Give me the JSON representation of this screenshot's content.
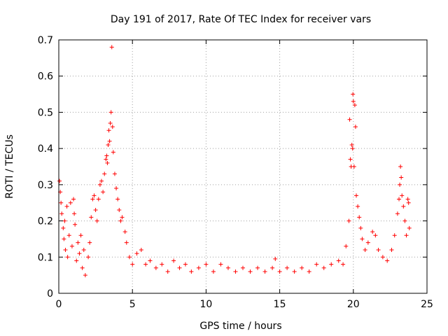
{
  "chart_data": {
    "type": "scatter",
    "title": "Day 191 of 2017, Rate Of TEC Index for receiver vars",
    "xlabel": "GPS time / hours",
    "ylabel": "ROTI / TECUs",
    "xlim": [
      0,
      25
    ],
    "ylim": [
      0,
      0.7
    ],
    "x_ticks": [
      0,
      5,
      10,
      15,
      20,
      25
    ],
    "x_tick_labels": [
      "0",
      "5",
      "10",
      "15",
      "20",
      "25"
    ],
    "y_ticks": [
      0,
      0.1,
      0.2,
      0.3,
      0.4,
      0.5,
      0.6,
      0.7
    ],
    "y_tick_labels": [
      "0",
      "0.1",
      "0.2",
      "0.3",
      "0.4",
      "0.5",
      "0.6",
      "0.7"
    ],
    "grid": true,
    "marker": "+",
    "series": [
      {
        "name": "ROTI",
        "color": "#ff0000",
        "points": [
          [
            0.05,
            0.31
          ],
          [
            0.1,
            0.28
          ],
          [
            0.15,
            0.25
          ],
          [
            0.2,
            0.22
          ],
          [
            0.3,
            0.18
          ],
          [
            0.35,
            0.15
          ],
          [
            0.4,
            0.2
          ],
          [
            0.45,
            0.12
          ],
          [
            0.55,
            0.24
          ],
          [
            0.6,
            0.1
          ],
          [
            0.7,
            0.16
          ],
          [
            0.8,
            0.25
          ],
          [
            0.9,
            0.13
          ],
          [
            1.0,
            0.26
          ],
          [
            1.05,
            0.22
          ],
          [
            1.1,
            0.19
          ],
          [
            1.2,
            0.09
          ],
          [
            1.3,
            0.14
          ],
          [
            1.4,
            0.11
          ],
          [
            1.5,
            0.16
          ],
          [
            1.6,
            0.07
          ],
          [
            1.7,
            0.12
          ],
          [
            1.8,
            0.05
          ],
          [
            2.0,
            0.1
          ],
          [
            2.1,
            0.14
          ],
          [
            2.2,
            0.21
          ],
          [
            2.3,
            0.26
          ],
          [
            2.4,
            0.27
          ],
          [
            2.5,
            0.23
          ],
          [
            2.6,
            0.2
          ],
          [
            2.7,
            0.26
          ],
          [
            2.8,
            0.3
          ],
          [
            2.9,
            0.31
          ],
          [
            3.0,
            0.28
          ],
          [
            3.1,
            0.33
          ],
          [
            3.2,
            0.37
          ],
          [
            3.25,
            0.38
          ],
          [
            3.3,
            0.36
          ],
          [
            3.35,
            0.41
          ],
          [
            3.4,
            0.45
          ],
          [
            3.45,
            0.42
          ],
          [
            3.5,
            0.47
          ],
          [
            3.55,
            0.5
          ],
          [
            3.6,
            0.68
          ],
          [
            3.65,
            0.46
          ],
          [
            3.7,
            0.39
          ],
          [
            3.8,
            0.33
          ],
          [
            3.9,
            0.29
          ],
          [
            4.0,
            0.26
          ],
          [
            4.1,
            0.23
          ],
          [
            4.2,
            0.2
          ],
          [
            4.3,
            0.21
          ],
          [
            4.5,
            0.17
          ],
          [
            4.6,
            0.14
          ],
          [
            4.8,
            0.1
          ],
          [
            5.0,
            0.08
          ],
          [
            5.3,
            0.11
          ],
          [
            5.6,
            0.12
          ],
          [
            5.9,
            0.08
          ],
          [
            6.2,
            0.09
          ],
          [
            6.6,
            0.07
          ],
          [
            7.0,
            0.08
          ],
          [
            7.4,
            0.06
          ],
          [
            7.8,
            0.09
          ],
          [
            8.2,
            0.07
          ],
          [
            8.6,
            0.08
          ],
          [
            9.0,
            0.06
          ],
          [
            9.5,
            0.07
          ],
          [
            10.0,
            0.08
          ],
          [
            10.5,
            0.06
          ],
          [
            11.0,
            0.08
          ],
          [
            11.5,
            0.07
          ],
          [
            12.0,
            0.06
          ],
          [
            12.5,
            0.07
          ],
          [
            13.0,
            0.06
          ],
          [
            13.5,
            0.07
          ],
          [
            14.0,
            0.06
          ],
          [
            14.5,
            0.07
          ],
          [
            14.7,
            0.095
          ],
          [
            15.0,
            0.06
          ],
          [
            15.5,
            0.07
          ],
          [
            16.0,
            0.06
          ],
          [
            16.5,
            0.07
          ],
          [
            17.0,
            0.06
          ],
          [
            17.5,
            0.08
          ],
          [
            18.0,
            0.07
          ],
          [
            18.5,
            0.08
          ],
          [
            19.0,
            0.09
          ],
          [
            19.3,
            0.08
          ],
          [
            19.5,
            0.13
          ],
          [
            19.7,
            0.2
          ],
          [
            19.75,
            0.48
          ],
          [
            19.8,
            0.37
          ],
          [
            19.85,
            0.35
          ],
          [
            19.9,
            0.41
          ],
          [
            19.95,
            0.4
          ],
          [
            19.97,
            0.55
          ],
          [
            20.0,
            0.53
          ],
          [
            20.05,
            0.35
          ],
          [
            20.1,
            0.52
          ],
          [
            20.15,
            0.46
          ],
          [
            20.2,
            0.27
          ],
          [
            20.3,
            0.24
          ],
          [
            20.4,
            0.21
          ],
          [
            20.5,
            0.18
          ],
          [
            20.6,
            0.15
          ],
          [
            20.8,
            0.12
          ],
          [
            21.0,
            0.14
          ],
          [
            21.3,
            0.17
          ],
          [
            21.5,
            0.16
          ],
          [
            21.7,
            0.12
          ],
          [
            22.0,
            0.1
          ],
          [
            22.3,
            0.09
          ],
          [
            22.6,
            0.12
          ],
          [
            22.8,
            0.16
          ],
          [
            23.0,
            0.22
          ],
          [
            23.1,
            0.26
          ],
          [
            23.15,
            0.3
          ],
          [
            23.2,
            0.35
          ],
          [
            23.25,
            0.32
          ],
          [
            23.3,
            0.27
          ],
          [
            23.4,
            0.24
          ],
          [
            23.5,
            0.2
          ],
          [
            23.6,
            0.16
          ],
          [
            23.7,
            0.26
          ],
          [
            23.75,
            0.25
          ],
          [
            23.8,
            0.18
          ]
        ]
      }
    ]
  }
}
